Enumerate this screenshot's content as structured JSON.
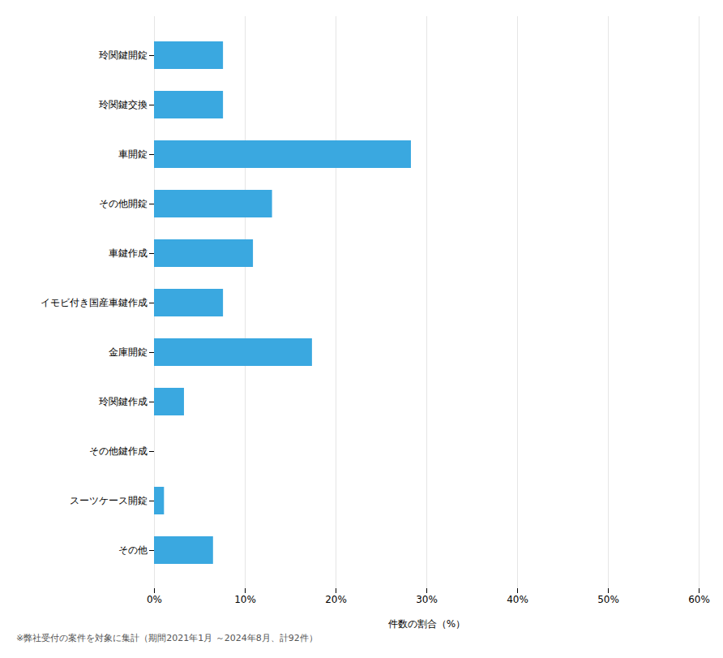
{
  "chart_data": {
    "type": "bar",
    "orientation": "horizontal",
    "categories": [
      "玲関鍵開錠",
      "玲関鍵交換",
      "車開錠",
      "その他開錠",
      "車鍵作成",
      "イモビ付き国産車鍵作成",
      "金庫開錠",
      "玲関鍵作成",
      "その他鍵作成",
      "スーツケース開錠",
      "その他"
    ],
    "values": [
      7.6,
      7.6,
      28.3,
      13.0,
      10.9,
      7.6,
      17.4,
      3.3,
      0.0,
      1.1,
      6.5
    ],
    "color": "#3AA8E0",
    "xlabel": "件数の割合（%）",
    "xlim": [
      0,
      60
    ],
    "xticks": [
      {
        "value": 0,
        "label": "0%"
      },
      {
        "value": 10,
        "label": "10%"
      },
      {
        "value": 20,
        "label": "20%"
      },
      {
        "value": 30,
        "label": "30%"
      },
      {
        "value": 40,
        "label": "40%"
      },
      {
        "value": 50,
        "label": "50%"
      },
      {
        "value": 60,
        "label": "60%"
      }
    ],
    "grid": true,
    "footnote": "※弊社受付の案件を対象に集計（期間2021年1月 ～2024年8月、計92件）"
  }
}
